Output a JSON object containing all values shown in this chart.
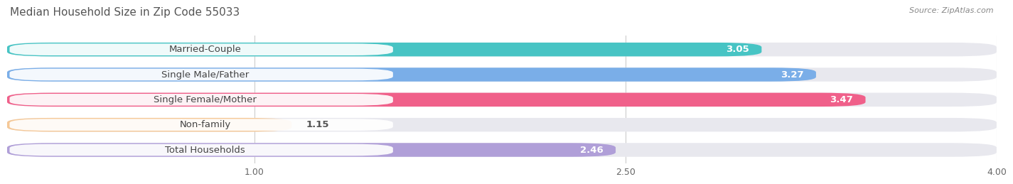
{
  "title": "Median Household Size in Zip Code 55033",
  "source": "Source: ZipAtlas.com",
  "categories": [
    "Married-Couple",
    "Single Male/Father",
    "Single Female/Mother",
    "Non-family",
    "Total Households"
  ],
  "values": [
    3.05,
    3.27,
    3.47,
    1.15,
    2.46
  ],
  "bar_colors": [
    "#47c4c4",
    "#7aaee8",
    "#f0608a",
    "#f5c897",
    "#b09fd8"
  ],
  "xmin": 0.0,
  "xmax": 4.0,
  "xticks": [
    1.0,
    2.5,
    4.0
  ],
  "xtick_labels": [
    "1.00",
    "2.50",
    "4.00"
  ],
  "label_fontsize": 9.5,
  "value_fontsize": 9.5,
  "title_fontsize": 11,
  "background_color": "#ffffff",
  "bar_bg_color": "#e8e8ee",
  "row_bg_color": "#f0f0f5"
}
